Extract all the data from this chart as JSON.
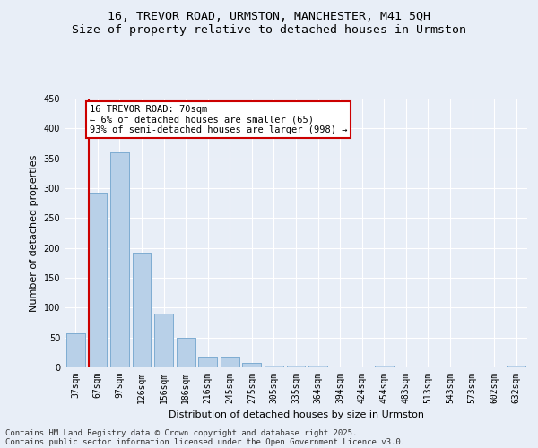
{
  "title1": "16, TREVOR ROAD, URMSTON, MANCHESTER, M41 5QH",
  "title2": "Size of property relative to detached houses in Urmston",
  "xlabel": "Distribution of detached houses by size in Urmston",
  "ylabel": "Number of detached properties",
  "bar_color": "#b8d0e8",
  "bar_edge_color": "#7aaad0",
  "marker_line_color": "#cc0000",
  "annotation_line1": "16 TREVOR ROAD: 70sqm",
  "annotation_line2": "← 6% of detached houses are smaller (65)",
  "annotation_line3": "93% of semi-detached houses are larger (998) →",
  "annotation_box_color": "#cc0000",
  "annotation_fill": "#ffffff",
  "categories": [
    "37sqm",
    "67sqm",
    "97sqm",
    "126sqm",
    "156sqm",
    "186sqm",
    "216sqm",
    "245sqm",
    "275sqm",
    "305sqm",
    "335sqm",
    "364sqm",
    "394sqm",
    "424sqm",
    "454sqm",
    "483sqm",
    "513sqm",
    "543sqm",
    "573sqm",
    "602sqm",
    "632sqm"
  ],
  "values": [
    57,
    292,
    360,
    192,
    90,
    50,
    18,
    18,
    8,
    3,
    3,
    3,
    0,
    0,
    3,
    0,
    0,
    0,
    0,
    0,
    3
  ],
  "ylim": [
    0,
    450
  ],
  "yticks": [
    0,
    50,
    100,
    150,
    200,
    250,
    300,
    350,
    400,
    450
  ],
  "background_color": "#e8eef7",
  "grid_color": "#ffffff",
  "footer1": "Contains HM Land Registry data © Crown copyright and database right 2025.",
  "footer2": "Contains public sector information licensed under the Open Government Licence v3.0.",
  "title_fontsize": 9.5,
  "subtitle_fontsize": 9.5,
  "axis_label_fontsize": 8,
  "tick_fontsize": 7,
  "annotation_fontsize": 7.5,
  "footer_fontsize": 6.5
}
